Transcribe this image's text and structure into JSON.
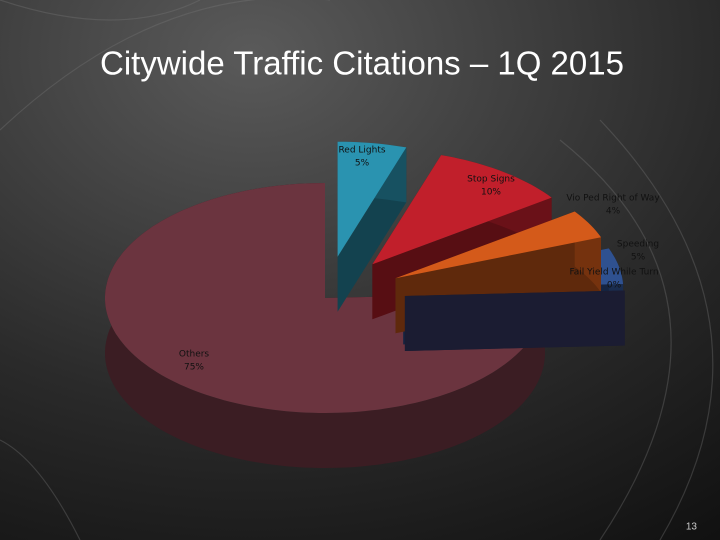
{
  "chart_data": {
    "type": "pie",
    "title": "Citywide Traffic Citations – 1Q 2015",
    "categories": [
      "Red Lights",
      "Stop Signs",
      "Vio Ped Right of Way",
      "Speeding",
      "Fail Yield While Turn",
      "Others"
    ],
    "values": [
      5,
      10,
      4,
      5,
      0,
      75
    ],
    "value_labels": [
      "5%",
      "10%",
      "4%",
      "5%",
      "0%",
      "75%"
    ],
    "colors": [
      "#2a93b0",
      "#c11f2b",
      "#d45a1a",
      "#2f5190",
      "#3d3f6e",
      "#6b343f"
    ]
  },
  "slide": {
    "page_number": "13"
  }
}
